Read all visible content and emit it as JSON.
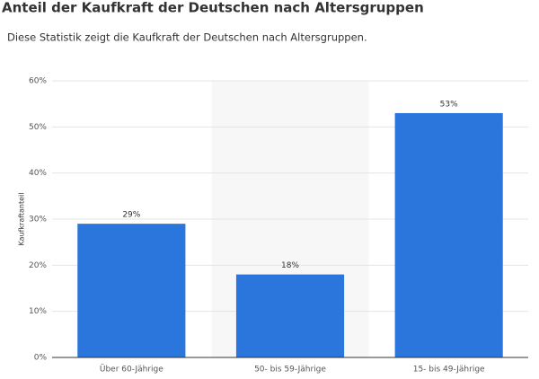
{
  "chart_data": {
    "type": "bar",
    "title": "Anteil der Kaufkraft der Deutschen nach Altersgruppen",
    "subtitle": "Diese Statistik zeigt die Kaufkraft der Deutschen nach Altersgruppen.",
    "y_label": "Kaufkraftanteil",
    "categories": [
      "Über 60-Jährige",
      "50- bis 59-Jährige",
      "15- bis 49-Jährige"
    ],
    "values": [
      29,
      18,
      53
    ],
    "value_labels": [
      "29%",
      "18%",
      "53%"
    ],
    "color": "#2a76dd",
    "ylim": [
      0,
      60
    ],
    "yticks": [
      {
        "value": 0,
        "label": "0%"
      },
      {
        "value": 10,
        "label": "10%"
      },
      {
        "value": 20,
        "label": "20%"
      },
      {
        "value": 30,
        "label": "30%"
      },
      {
        "value": 40,
        "label": "40%"
      },
      {
        "value": 50,
        "label": "50%"
      },
      {
        "value": 60,
        "label": "60%"
      }
    ],
    "grid": true
  }
}
